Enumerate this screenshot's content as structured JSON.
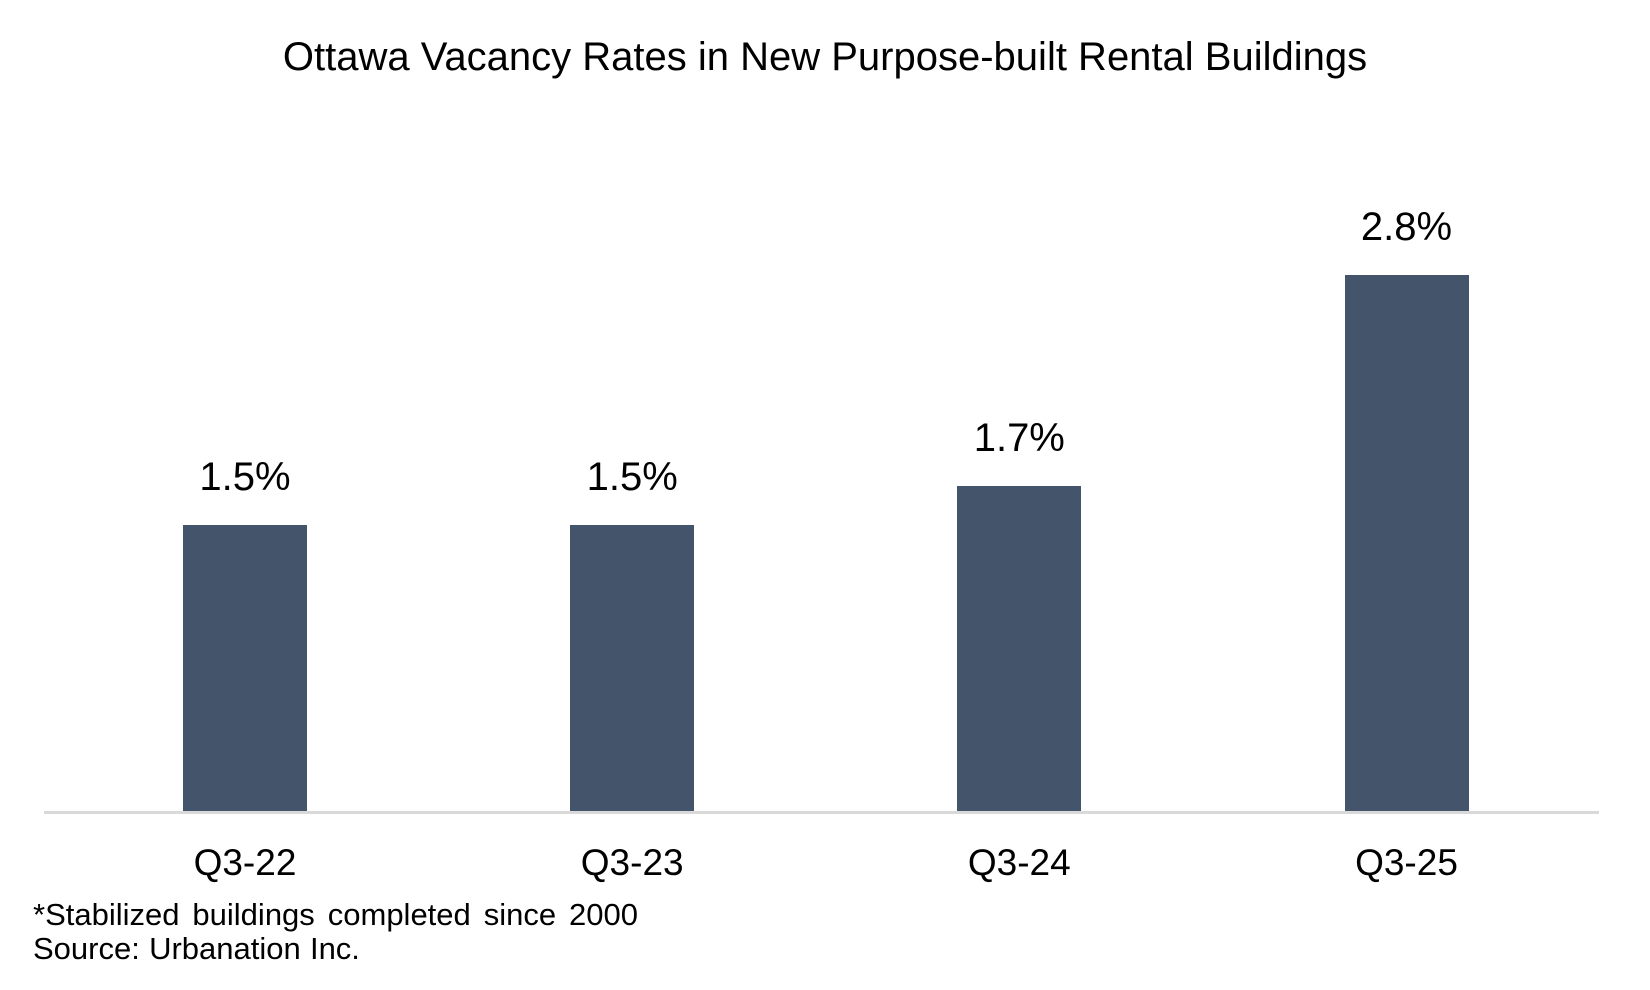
{
  "chart_data": {
    "type": "bar",
    "title": "Ottawa Vacancy Rates in New Purpose-built Rental Buildings",
    "categories": [
      "Q3-22",
      "Q3-23",
      "Q3-24",
      "Q3-25"
    ],
    "values": [
      1.5,
      1.5,
      1.7,
      2.8
    ],
    "value_labels": [
      "1.5%",
      "1.5%",
      "1.7%",
      "2.8%"
    ],
    "unit": "percent",
    "xlabel": "",
    "ylabel": "",
    "ylim": [
      0,
      3.2
    ],
    "grid": false,
    "legend": false,
    "bar_color": "#44546A",
    "axis_line_color": "#D9D9D9",
    "background_color": "#FFFFFF",
    "text_color": "#000000",
    "footnote": "*Stabilized buildings completed since 2000",
    "source": "Source: Urbanation Inc."
  }
}
